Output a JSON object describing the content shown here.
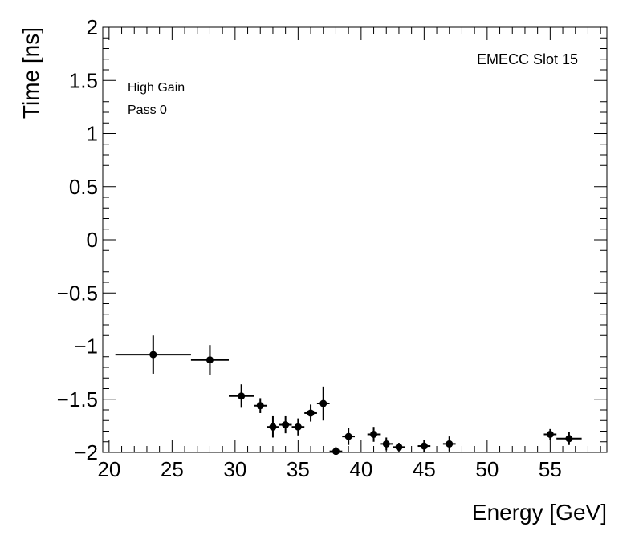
{
  "chart_data": {
    "type": "scatter",
    "title": "",
    "xlabel": "Energy [GeV]",
    "ylabel": "Time [ns]",
    "xlim": [
      19.5,
      59.5
    ],
    "ylim": [
      -2,
      2
    ],
    "x_ticks": [
      20,
      25,
      30,
      35,
      40,
      45,
      50,
      55
    ],
    "x_tick_labels": [
      "20",
      "25",
      "30",
      "35",
      "40",
      "45",
      "50",
      "55"
    ],
    "y_ticks": [
      -2,
      -1.5,
      -1,
      -0.5,
      0,
      0.5,
      1,
      1.5,
      2
    ],
    "y_tick_labels": [
      "−2",
      "−1.5",
      "−1",
      "−0.5",
      "0",
      "0.5",
      "1",
      "1.5",
      "2"
    ],
    "annotations": {
      "slot_label": "EMECC Slot 15",
      "gain_label": "High Gain",
      "pass_label": "Pass 0"
    },
    "series": [
      {
        "name": "High Gain Pass 0",
        "points": [
          {
            "x": 23.5,
            "y": -1.08,
            "xlo": 20.5,
            "xhi": 26.5,
            "yerr": 0.18
          },
          {
            "x": 28.0,
            "y": -1.13,
            "xlo": 26.5,
            "xhi": 29.5,
            "yerr": 0.14
          },
          {
            "x": 30.5,
            "y": -1.47,
            "xlo": 29.5,
            "xhi": 31.5,
            "yerr": 0.11
          },
          {
            "x": 32.0,
            "y": -1.56,
            "xlo": 31.5,
            "xhi": 32.5,
            "yerr": 0.07
          },
          {
            "x": 33.0,
            "y": -1.76,
            "xlo": 32.5,
            "xhi": 33.5,
            "yerr": 0.1
          },
          {
            "x": 34.0,
            "y": -1.74,
            "xlo": 33.5,
            "xhi": 34.5,
            "yerr": 0.08
          },
          {
            "x": 35.0,
            "y": -1.76,
            "xlo": 34.5,
            "xhi": 35.5,
            "yerr": 0.08
          },
          {
            "x": 36.0,
            "y": -1.63,
            "xlo": 35.5,
            "xhi": 36.5,
            "yerr": 0.08
          },
          {
            "x": 37.0,
            "y": -1.54,
            "xlo": 36.5,
            "xhi": 37.5,
            "yerr": 0.16
          },
          {
            "x": 38.0,
            "y": -1.99,
            "xlo": 37.5,
            "xhi": 38.5,
            "yerr": 0.04
          },
          {
            "x": 39.0,
            "y": -1.85,
            "xlo": 38.5,
            "xhi": 39.5,
            "yerr": 0.08
          },
          {
            "x": 41.0,
            "y": -1.83,
            "xlo": 40.5,
            "xhi": 41.5,
            "yerr": 0.07
          },
          {
            "x": 42.0,
            "y": -1.92,
            "xlo": 41.5,
            "xhi": 42.5,
            "yerr": 0.06
          },
          {
            "x": 43.0,
            "y": -1.95,
            "xlo": 42.5,
            "xhi": 43.5,
            "yerr": 0.04
          },
          {
            "x": 45.0,
            "y": -1.94,
            "xlo": 44.5,
            "xhi": 45.5,
            "yerr": 0.06
          },
          {
            "x": 47.0,
            "y": -1.92,
            "xlo": 46.5,
            "xhi": 47.5,
            "yerr": 0.07
          },
          {
            "x": 55.0,
            "y": -1.83,
            "xlo": 54.5,
            "xhi": 55.5,
            "yerr": 0.05
          },
          {
            "x": 56.5,
            "y": -1.87,
            "xlo": 55.5,
            "xhi": 57.5,
            "yerr": 0.06
          }
        ]
      }
    ]
  }
}
